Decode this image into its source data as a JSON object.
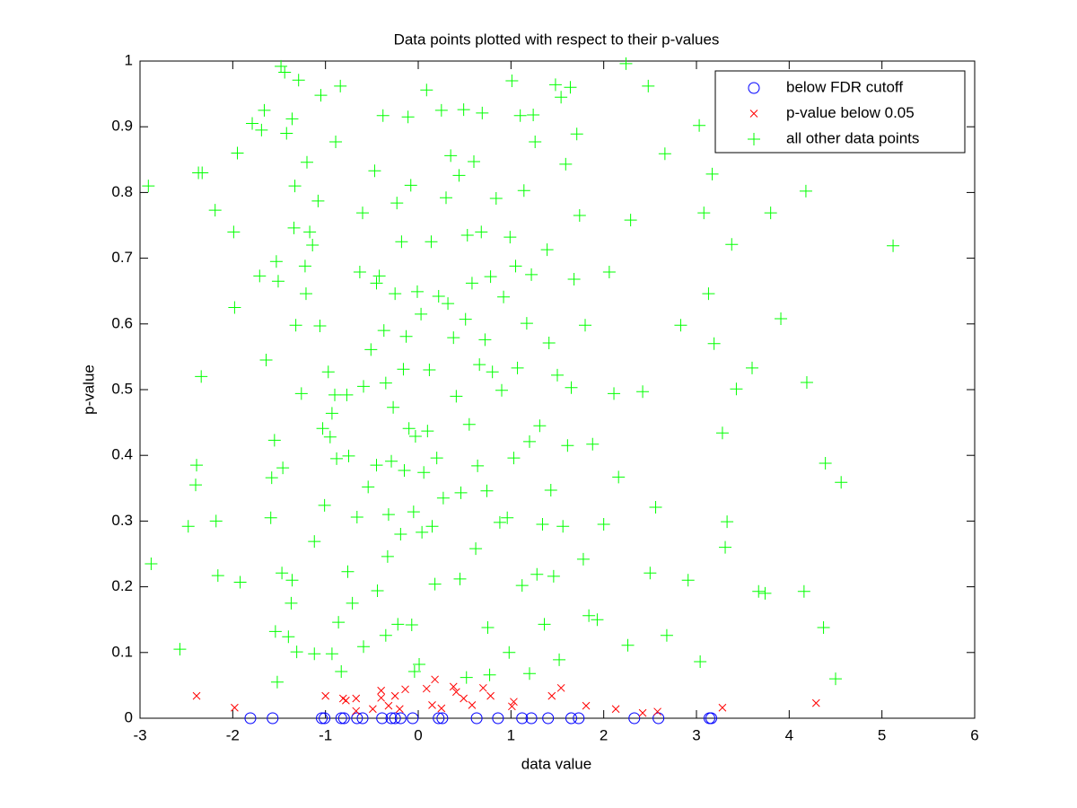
{
  "chart_data": {
    "type": "scatter",
    "title": "Data points plotted with respect to their p-values",
    "x_label": "data value",
    "y_label": "p-value",
    "xlim": [
      -3,
      6
    ],
    "xticks": [
      -3,
      -2,
      -1,
      0,
      1,
      2,
      3,
      4,
      5,
      6
    ],
    "ylim": [
      0,
      1
    ],
    "yticks": [
      0,
      0.1,
      0.2,
      0.3,
      0.4,
      0.5,
      0.6,
      0.7,
      0.8,
      0.9,
      1
    ],
    "legend": "upper right",
    "series": [
      {
        "name": "below FDR cutoff",
        "color": "#0000ff",
        "marker": "o",
        "x": [
          -1.81,
          -1.57,
          -1.04,
          -1.01,
          -0.83,
          -0.8,
          -0.66,
          -0.6,
          -0.39,
          -0.29,
          -0.25,
          -0.19,
          -0.06,
          0.22,
          0.26,
          0.63,
          0.86,
          1.12,
          1.22,
          1.4,
          1.65,
          1.73,
          2.33,
          2.59,
          3.14,
          3.16
        ],
        "values": [
          0,
          0,
          0,
          0,
          0,
          0,
          0,
          0,
          0,
          0,
          0,
          0,
          0,
          0,
          0,
          0,
          0,
          0,
          0,
          0,
          0,
          0,
          0,
          0,
          0,
          0
        ]
      },
      {
        "name": "p-value below 0.05",
        "color": "#ff0000",
        "marker": "x",
        "x": [
          -2.39,
          -1.98,
          -1.0,
          -0.81,
          -0.78,
          -0.67,
          -0.67,
          -0.49,
          -0.4,
          -0.4,
          -0.32,
          -0.25,
          -0.2,
          -0.14,
          0.09,
          0.15,
          0.18,
          0.25,
          0.38,
          0.41,
          0.49,
          0.58,
          0.7,
          0.78,
          1.01,
          1.03,
          1.44,
          1.54,
          1.81,
          2.13,
          2.42,
          2.58,
          3.28,
          4.29
        ],
        "values": [
          0.034,
          0.016,
          0.034,
          0.03,
          0.027,
          0.011,
          0.03,
          0.014,
          0.042,
          0.031,
          0.019,
          0.034,
          0.014,
          0.044,
          0.045,
          0.02,
          0.059,
          0.015,
          0.048,
          0.04,
          0.03,
          0.02,
          0.046,
          0.034,
          0.018,
          0.025,
          0.034,
          0.046,
          0.019,
          0.014,
          0.008,
          0.01,
          0.016,
          0.023
        ]
      },
      {
        "name": "all other data points",
        "color": "#00ff00",
        "marker": "+",
        "x": [
          -2.91,
          -2.88,
          -2.57,
          -2.48,
          -2.4,
          -2.39,
          -2.37,
          -2.33,
          -2.34,
          -2.19,
          -2.18,
          -2.16,
          -1.99,
          -1.98,
          -1.95,
          -1.92,
          -1.79,
          -1.71,
          -1.69,
          -1.66,
          -1.64,
          -1.59,
          -1.58,
          -1.55,
          -1.54,
          -1.53,
          -1.51,
          -1.48,
          -1.47,
          -1.46,
          -1.44,
          -1.42,
          -1.4,
          -1.37,
          -1.36,
          -1.36,
          -1.34,
          -1.33,
          -1.32,
          -1.31,
          -1.29,
          -1.26,
          -1.22,
          -1.21,
          -1.2,
          -1.17,
          -1.14,
          -1.12,
          -1.08,
          -1.06,
          -1.05,
          -1.03,
          -1.01,
          -0.97,
          -0.95,
          -0.93,
          -0.9,
          -0.89,
          -0.88,
          -0.86,
          -0.84,
          -0.83,
          -0.77,
          -0.76,
          -0.75,
          -0.71,
          -0.66,
          -0.63,
          -0.6,
          -0.59,
          -0.54,
          -0.51,
          -0.47,
          -0.45,
          -0.45,
          -0.44,
          -0.42,
          -0.38,
          -0.37,
          -0.35,
          -0.33,
          -0.32,
          -0.29,
          -0.27,
          -0.25,
          -0.23,
          -0.22,
          -0.19,
          -0.18,
          -0.16,
          -0.15,
          -0.13,
          -0.11,
          -0.1,
          -0.08,
          -0.07,
          -0.05,
          -0.03,
          -0.01,
          0.01,
          0.03,
          0.04,
          0.06,
          0.09,
          0.1,
          0.12,
          0.14,
          0.15,
          0.18,
          0.2,
          0.22,
          0.25,
          0.27,
          0.3,
          0.32,
          0.35,
          0.38,
          0.41,
          0.44,
          0.45,
          0.46,
          0.49,
          0.51,
          0.53,
          0.55,
          0.58,
          0.6,
          0.62,
          0.64,
          0.66,
          0.68,
          0.69,
          0.72,
          0.74,
          0.75,
          0.78,
          0.8,
          0.84,
          0.88,
          0.9,
          0.92,
          0.96,
          0.99,
          1.01,
          1.03,
          1.05,
          1.07,
          1.1,
          1.12,
          1.14,
          1.17,
          1.2,
          1.22,
          1.24,
          1.26,
          1.28,
          1.31,
          1.34,
          1.36,
          1.39,
          1.41,
          1.43,
          1.46,
          1.48,
          1.5,
          1.54,
          1.56,
          1.59,
          1.61,
          1.64,
          1.65,
          1.68,
          1.71,
          1.74,
          1.78,
          1.8,
          1.84,
          1.88,
          1.93,
          2.0,
          2.06,
          2.11,
          2.16,
          2.24,
          2.26,
          2.29,
          2.42,
          2.48,
          2.5,
          2.56,
          2.66,
          2.68,
          2.83,
          2.91,
          3.03,
          3.08,
          3.13,
          3.17,
          3.19,
          3.28,
          3.31,
          3.33,
          3.38,
          3.43,
          3.6,
          3.67,
          3.74,
          3.8,
          3.91,
          4.16,
          4.18,
          4.19,
          4.37,
          4.39,
          4.5,
          4.56,
          5.12,
          -1.12,
          -0.93,
          -0.59,
          -0.35,
          -0.04,
          0.52,
          0.77,
          0.98,
          1.2,
          1.52,
          3.04,
          -1.52
        ],
        "values": [
          0.81,
          0.235,
          0.105,
          0.292,
          0.355,
          0.385,
          0.83,
          0.83,
          0.52,
          0.773,
          0.3,
          0.217,
          0.74,
          0.625,
          0.86,
          0.207,
          0.905,
          0.673,
          0.895,
          0.925,
          0.545,
          0.305,
          0.366,
          0.423,
          0.132,
          0.695,
          0.665,
          0.992,
          0.221,
          0.381,
          0.983,
          0.89,
          0.124,
          0.175,
          0.912,
          0.21,
          0.746,
          0.81,
          0.598,
          0.101,
          0.971,
          0.494,
          0.688,
          0.646,
          0.846,
          0.74,
          0.72,
          0.269,
          0.787,
          0.597,
          0.948,
          0.441,
          0.324,
          0.527,
          0.428,
          0.464,
          0.492,
          0.877,
          0.395,
          0.146,
          0.962,
          0.071,
          0.492,
          0.223,
          0.399,
          0.175,
          0.306,
          0.679,
          0.769,
          0.505,
          0.352,
          0.561,
          0.833,
          0.662,
          0.385,
          0.194,
          0.673,
          0.917,
          0.59,
          0.51,
          0.246,
          0.31,
          0.391,
          0.473,
          0.646,
          0.784,
          0.143,
          0.28,
          0.725,
          0.531,
          0.377,
          0.581,
          0.915,
          0.441,
          0.811,
          0.142,
          0.314,
          0.429,
          0.649,
          0.082,
          0.615,
          0.283,
          0.374,
          0.956,
          0.437,
          0.53,
          0.725,
          0.292,
          0.204,
          0.396,
          0.642,
          0.925,
          0.335,
          0.792,
          0.631,
          0.856,
          0.579,
          0.49,
          0.826,
          0.212,
          0.343,
          0.926,
          0.607,
          0.735,
          0.447,
          0.662,
          0.847,
          0.258,
          0.384,
          0.538,
          0.74,
          0.921,
          0.576,
          0.346,
          0.138,
          0.672,
          0.527,
          0.791,
          0.298,
          0.499,
          0.641,
          0.305,
          0.732,
          0.97,
          0.396,
          0.688,
          0.533,
          0.917,
          0.202,
          0.803,
          0.601,
          0.421,
          0.675,
          0.918,
          0.877,
          0.219,
          0.445,
          0.295,
          0.143,
          0.713,
          0.571,
          0.347,
          0.216,
          0.964,
          0.522,
          0.945,
          0.292,
          0.843,
          0.415,
          0.96,
          0.503,
          0.668,
          0.889,
          0.765,
          0.242,
          0.598,
          0.156,
          0.417,
          0.15,
          0.295,
          0.679,
          0.494,
          0.367,
          0.996,
          0.111,
          0.758,
          0.497,
          0.962,
          0.221,
          0.321,
          0.859,
          0.126,
          0.598,
          0.21,
          0.902,
          0.769,
          0.646,
          0.828,
          0.57,
          0.434,
          0.26,
          0.299,
          0.721,
          0.501,
          0.533,
          0.193,
          0.19,
          0.769,
          0.608,
          0.193,
          0.802,
          0.511,
          0.138,
          0.388,
          0.06,
          0.359,
          0.719,
          0.098,
          0.098,
          0.109,
          0.126,
          0.071,
          0.062,
          0.066,
          0.1,
          0.068,
          0.089,
          0.086,
          0.055
        ]
      }
    ]
  }
}
